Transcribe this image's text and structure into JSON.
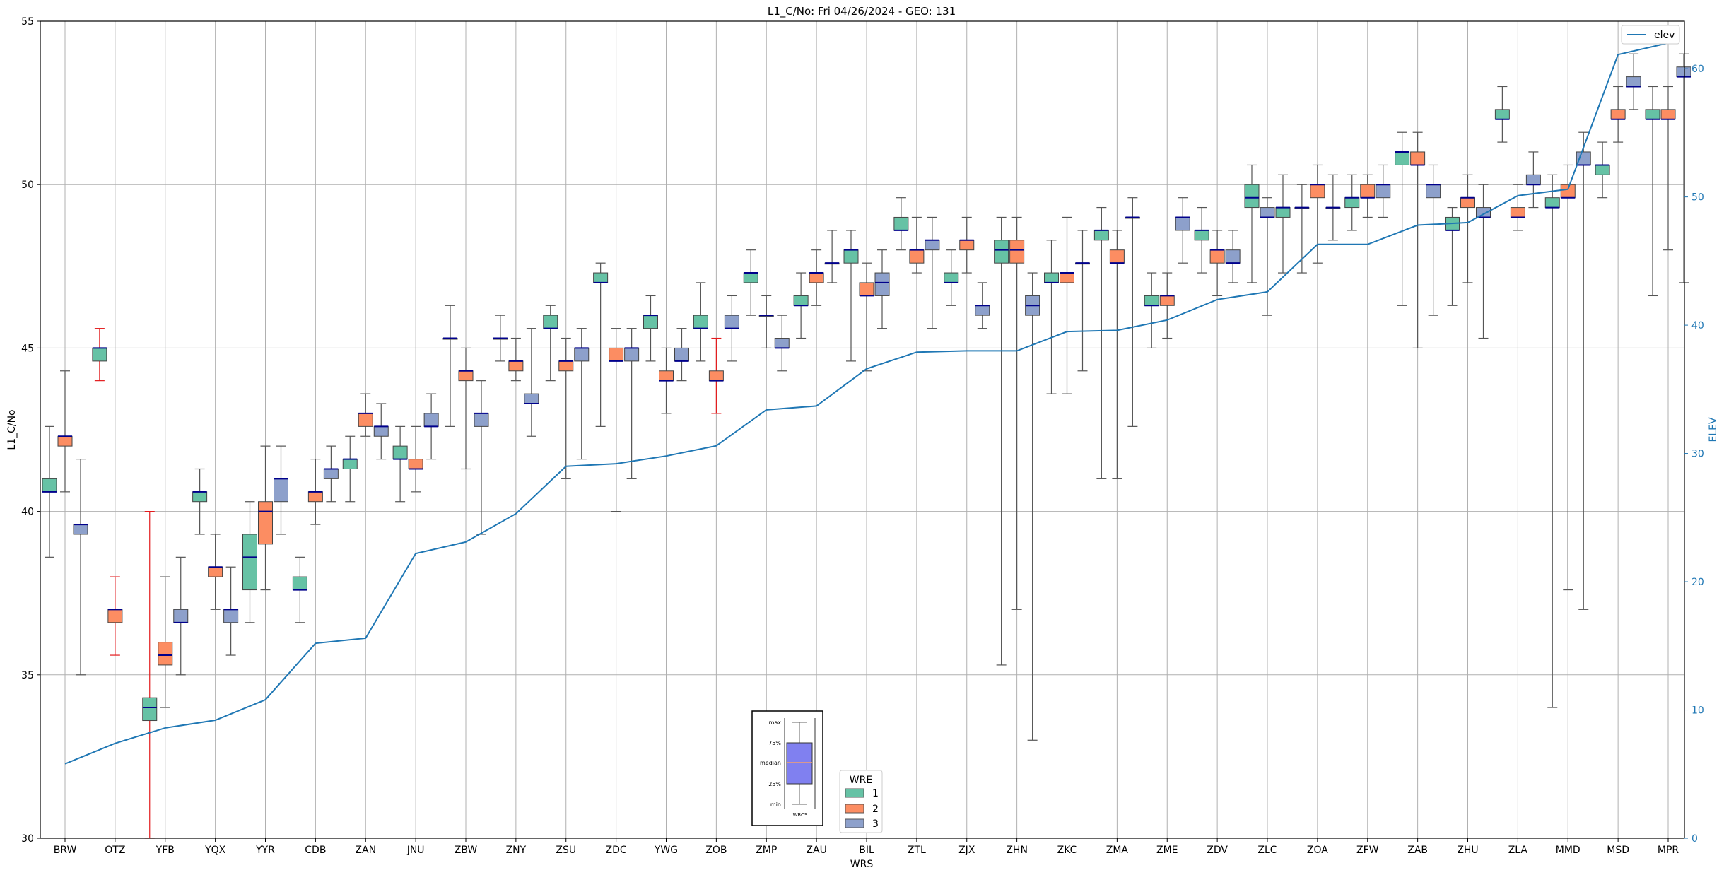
{
  "chart_data": {
    "type": "box",
    "title": "L1_C/No: Fri 04/26/2024 - GEO: 131",
    "xlabel": "WRS",
    "ylabel": "L1_C/No",
    "y2label": "ELEV",
    "ylim": [
      30,
      55
    ],
    "y2lim": [
      0,
      63.7
    ],
    "yticks": [
      30,
      35,
      40,
      45,
      50,
      55
    ],
    "y2ticks": [
      0,
      10,
      20,
      30,
      40,
      50,
      60
    ],
    "grid": true,
    "legend_position": "top-right",
    "wre_legend_position": "lower-center",
    "categories": [
      "BRW",
      "OTZ",
      "YFB",
      "YQX",
      "YYR",
      "CDB",
      "ZAN",
      "JNU",
      "ZBW",
      "ZNY",
      "ZSU",
      "ZDC",
      "YWG",
      "ZOB",
      "ZMP",
      "ZAU",
      "BIL",
      "ZTL",
      "ZJX",
      "ZHN",
      "ZKC",
      "ZMA",
      "ZME",
      "ZDV",
      "ZLC",
      "ZOA",
      "ZFW",
      "ZAB",
      "ZHU",
      "ZLA",
      "MMD",
      "MSD",
      "MPR"
    ],
    "wre_legend": {
      "title": "WRE",
      "items": [
        {
          "label": "1",
          "color": "#66c2a5"
        },
        {
          "label": "2",
          "color": "#fc8d62"
        },
        {
          "label": "3",
          "color": "#8da0cb"
        }
      ]
    },
    "key_inset": {
      "labels": [
        "max",
        "75%",
        "median",
        "25%",
        "min"
      ],
      "xlabel": "WRCS"
    },
    "elev": {
      "name": "elev",
      "color": "#1f77b4",
      "values": [
        5.8,
        7.4,
        8.6,
        9.2,
        10.8,
        15.2,
        15.6,
        22.2,
        23.1,
        25.3,
        29.0,
        29.2,
        29.8,
        30.6,
        33.4,
        33.7,
        36.6,
        37.9,
        38.0,
        38.0,
        39.5,
        39.6,
        40.4,
        42.0,
        42.6,
        46.3,
        46.3,
        47.8,
        48.0,
        50.1,
        50.6,
        61.1,
        62.0
      ]
    },
    "boxes": [
      {
        "cat": "BRW",
        "wre": 1,
        "min": 38.6,
        "q1": 40.6,
        "median": 40.6,
        "q3": 41.0,
        "max": 42.6
      },
      {
        "cat": "BRW",
        "wre": 2,
        "min": 40.6,
        "q1": 42.0,
        "median": 42.3,
        "q3": 42.3,
        "max": 44.3
      },
      {
        "cat": "BRW",
        "wre": 3,
        "min": 35.0,
        "q1": 39.3,
        "median": 39.6,
        "q3": 39.6,
        "max": 41.6
      },
      {
        "cat": "OTZ",
        "wre": 1,
        "min": 44.0,
        "q1": 44.6,
        "median": 45.0,
        "q3": 45.0,
        "max": 45.6,
        "whisker_color": "#e31a1c"
      },
      {
        "cat": "OTZ",
        "wre": 2,
        "min": 35.6,
        "q1": 36.6,
        "median": 37.0,
        "q3": 37.0,
        "max": 38.0,
        "whisker_color": "#e31a1c"
      },
      {
        "cat": "YFB",
        "wre": 1,
        "min": 30.0,
        "q1": 33.6,
        "median": 34.0,
        "q3": 34.3,
        "max": 40.0,
        "whisker_color": "#e31a1c"
      },
      {
        "cat": "YFB",
        "wre": 2,
        "min": 34.0,
        "q1": 35.3,
        "median": 35.6,
        "q3": 36.0,
        "max": 38.0
      },
      {
        "cat": "YFB",
        "wre": 3,
        "min": 35.0,
        "q1": 36.6,
        "median": 36.6,
        "q3": 37.0,
        "max": 38.6
      },
      {
        "cat": "YQX",
        "wre": 1,
        "min": 39.3,
        "q1": 40.3,
        "median": 40.6,
        "q3": 40.6,
        "max": 41.3
      },
      {
        "cat": "YQX",
        "wre": 2,
        "min": 37.0,
        "q1": 38.0,
        "median": 38.3,
        "q3": 38.3,
        "max": 39.3
      },
      {
        "cat": "YQX",
        "wre": 3,
        "min": 35.6,
        "q1": 36.6,
        "median": 37.0,
        "q3": 37.0,
        "max": 38.3
      },
      {
        "cat": "YYR",
        "wre": 1,
        "min": 36.6,
        "q1": 37.6,
        "median": 38.6,
        "q3": 39.3,
        "max": 40.3
      },
      {
        "cat": "YYR",
        "wre": 2,
        "min": 37.6,
        "q1": 39.0,
        "median": 40.0,
        "q3": 40.3,
        "max": 42.0
      },
      {
        "cat": "YYR",
        "wre": 3,
        "min": 39.3,
        "q1": 40.3,
        "median": 41.0,
        "q3": 41.0,
        "max": 42.0
      },
      {
        "cat": "CDB",
        "wre": 1,
        "min": 36.6,
        "q1": 37.6,
        "median": 37.6,
        "q3": 38.0,
        "max": 38.6
      },
      {
        "cat": "CDB",
        "wre": 2,
        "min": 39.6,
        "q1": 40.3,
        "median": 40.6,
        "q3": 40.6,
        "max": 41.6
      },
      {
        "cat": "CDB",
        "wre": 3,
        "min": 40.3,
        "q1": 41.0,
        "median": 41.3,
        "q3": 41.3,
        "max": 42.0
      },
      {
        "cat": "ZAN",
        "wre": 1,
        "min": 40.3,
        "q1": 41.3,
        "median": 41.6,
        "q3": 41.6,
        "max": 42.3
      },
      {
        "cat": "ZAN",
        "wre": 2,
        "min": 42.3,
        "q1": 42.6,
        "median": 43.0,
        "q3": 43.0,
        "max": 43.6
      },
      {
        "cat": "ZAN",
        "wre": 3,
        "min": 41.6,
        "q1": 42.3,
        "median": 42.6,
        "q3": 42.6,
        "max": 43.3
      },
      {
        "cat": "JNU",
        "wre": 1,
        "min": 40.3,
        "q1": 41.6,
        "median": 41.6,
        "q3": 42.0,
        "max": 42.6
      },
      {
        "cat": "JNU",
        "wre": 2,
        "min": 40.6,
        "q1": 41.3,
        "median": 41.3,
        "q3": 41.6,
        "max": 42.6
      },
      {
        "cat": "JNU",
        "wre": 3,
        "min": 41.6,
        "q1": 42.6,
        "median": 42.6,
        "q3": 43.0,
        "max": 43.6
      },
      {
        "cat": "ZBW",
        "wre": 3,
        "min": 42.6,
        "q1": 45.3,
        "median": 45.3,
        "q3": 45.3,
        "max": 46.3
      },
      {
        "cat": "ZBW",
        "wre": 2,
        "min": 41.3,
        "q1": 44.0,
        "median": 44.3,
        "q3": 44.3,
        "max": 45.0
      },
      {
        "cat": "ZBW",
        "wre": 3,
        "min": 39.3,
        "q1": 42.6,
        "median": 43.0,
        "q3": 43.0,
        "max": 44.0
      },
      {
        "cat": "ZNY",
        "wre": 3,
        "min": 44.6,
        "q1": 45.3,
        "median": 45.3,
        "q3": 45.3,
        "max": 46.0
      },
      {
        "cat": "ZNY",
        "wre": 2,
        "min": 44.0,
        "q1": 44.3,
        "median": 44.6,
        "q3": 44.6,
        "max": 45.3
      },
      {
        "cat": "ZNY",
        "wre": 3,
        "min": 42.3,
        "q1": 43.3,
        "median": 43.3,
        "q3": 43.6,
        "max": 45.6
      },
      {
        "cat": "ZSU",
        "wre": 1,
        "min": 44.0,
        "q1": 45.6,
        "median": 45.6,
        "q3": 46.0,
        "max": 46.3
      },
      {
        "cat": "ZSU",
        "wre": 2,
        "min": 41.0,
        "q1": 44.3,
        "median": 44.6,
        "q3": 44.6,
        "max": 45.3
      },
      {
        "cat": "ZSU",
        "wre": 3,
        "min": 41.6,
        "q1": 44.6,
        "median": 45.0,
        "q3": 45.0,
        "max": 45.6
      },
      {
        "cat": "ZDC",
        "wre": 1,
        "min": 42.6,
        "q1": 47.0,
        "median": 47.0,
        "q3": 47.3,
        "max": 47.6
      },
      {
        "cat": "ZDC",
        "wre": 2,
        "min": 40.0,
        "q1": 44.6,
        "median": 44.6,
        "q3": 45.0,
        "max": 45.6
      },
      {
        "cat": "ZDC",
        "wre": 3,
        "min": 41.0,
        "q1": 44.6,
        "median": 45.0,
        "q3": 45.0,
        "max": 45.6
      },
      {
        "cat": "YWG",
        "wre": 1,
        "min": 44.6,
        "q1": 45.6,
        "median": 46.0,
        "q3": 46.0,
        "max": 46.6
      },
      {
        "cat": "YWG",
        "wre": 2,
        "min": 43.0,
        "q1": 44.0,
        "median": 44.0,
        "q3": 44.3,
        "max": 45.0
      },
      {
        "cat": "YWG",
        "wre": 3,
        "min": 44.0,
        "q1": 44.6,
        "median": 44.6,
        "q3": 45.0,
        "max": 45.6
      },
      {
        "cat": "ZOB",
        "wre": 1,
        "min": 44.6,
        "q1": 45.6,
        "median": 45.6,
        "q3": 46.0,
        "max": 47.0
      },
      {
        "cat": "ZOB",
        "wre": 2,
        "min": 43.0,
        "q1": 44.0,
        "median": 44.0,
        "q3": 44.3,
        "max": 45.3,
        "whisker_color": "#e31a1c"
      },
      {
        "cat": "ZOB",
        "wre": 3,
        "min": 44.6,
        "q1": 45.6,
        "median": 45.6,
        "q3": 46.0,
        "max": 46.6
      },
      {
        "cat": "ZMP",
        "wre": 1,
        "min": 46.0,
        "q1": 47.0,
        "median": 47.3,
        "q3": 47.3,
        "max": 48.0
      },
      {
        "cat": "ZMP",
        "wre": 3,
        "min": 45.0,
        "q1": 46.0,
        "median": 46.0,
        "q3": 46.0,
        "max": 46.6
      },
      {
        "cat": "ZMP",
        "wre": 3,
        "min": 44.3,
        "q1": 45.0,
        "median": 45.0,
        "q3": 45.3,
        "max": 46.0
      },
      {
        "cat": "ZAU",
        "wre": 1,
        "min": 45.3,
        "q1": 46.3,
        "median": 46.3,
        "q3": 46.6,
        "max": 47.3
      },
      {
        "cat": "ZAU",
        "wre": 2,
        "min": 46.3,
        "q1": 47.0,
        "median": 47.3,
        "q3": 47.3,
        "max": 48.0
      },
      {
        "cat": "ZAU",
        "wre": 3,
        "min": 47.0,
        "q1": 47.6,
        "median": 47.6,
        "q3": 47.6,
        "max": 48.6
      },
      {
        "cat": "BIL",
        "wre": 1,
        "min": 44.6,
        "q1": 47.6,
        "median": 48.0,
        "q3": 48.0,
        "max": 48.6
      },
      {
        "cat": "BIL",
        "wre": 2,
        "min": 44.3,
        "q1": 46.6,
        "median": 46.6,
        "q3": 47.0,
        "max": 47.6
      },
      {
        "cat": "BIL",
        "wre": 3,
        "min": 45.6,
        "q1": 46.6,
        "median": 47.0,
        "q3": 47.3,
        "max": 48.0
      },
      {
        "cat": "ZTL",
        "wre": 1,
        "min": 48.0,
        "q1": 48.6,
        "median": 48.6,
        "q3": 49.0,
        "max": 49.6
      },
      {
        "cat": "ZTL",
        "wre": 2,
        "min": 47.3,
        "q1": 47.6,
        "median": 48.0,
        "q3": 48.0,
        "max": 49.0
      },
      {
        "cat": "ZTL",
        "wre": 3,
        "min": 45.6,
        "q1": 48.0,
        "median": 48.3,
        "q3": 48.3,
        "max": 49.0
      },
      {
        "cat": "ZJX",
        "wre": 1,
        "min": 46.3,
        "q1": 47.0,
        "median": 47.0,
        "q3": 47.3,
        "max": 48.0
      },
      {
        "cat": "ZJX",
        "wre": 2,
        "min": 47.3,
        "q1": 48.0,
        "median": 48.3,
        "q3": 48.3,
        "max": 49.0
      },
      {
        "cat": "ZJX",
        "wre": 3,
        "min": 45.6,
        "q1": 46.0,
        "median": 46.3,
        "q3": 46.3,
        "max": 47.0
      },
      {
        "cat": "ZHN",
        "wre": 1,
        "min": 35.3,
        "q1": 47.6,
        "median": 48.0,
        "q3": 48.3,
        "max": 49.0
      },
      {
        "cat": "ZHN",
        "wre": 2,
        "min": 37.0,
        "q1": 47.6,
        "median": 48.0,
        "q3": 48.3,
        "max": 49.0
      },
      {
        "cat": "ZHN",
        "wre": 3,
        "min": 33.0,
        "q1": 46.0,
        "median": 46.3,
        "q3": 46.6,
        "max": 47.3
      },
      {
        "cat": "ZKC",
        "wre": 1,
        "min": 43.6,
        "q1": 47.0,
        "median": 47.0,
        "q3": 47.3,
        "max": 48.3
      },
      {
        "cat": "ZKC",
        "wre": 2,
        "min": 43.6,
        "q1": 47.0,
        "median": 47.3,
        "q3": 47.3,
        "max": 49.0
      },
      {
        "cat": "ZKC",
        "wre": 3,
        "min": 44.3,
        "q1": 47.6,
        "median": 47.6,
        "q3": 47.6,
        "max": 48.6
      },
      {
        "cat": "ZMA",
        "wre": 1,
        "min": 41.0,
        "q1": 48.3,
        "median": 48.6,
        "q3": 48.6,
        "max": 49.3
      },
      {
        "cat": "ZMA",
        "wre": 2,
        "min": 41.0,
        "q1": 47.6,
        "median": 47.6,
        "q3": 48.0,
        "max": 48.6
      },
      {
        "cat": "ZMA",
        "wre": 3,
        "min": 42.6,
        "q1": 49.0,
        "median": 49.0,
        "q3": 49.0,
        "max": 49.6
      },
      {
        "cat": "ZME",
        "wre": 1,
        "min": 45.0,
        "q1": 46.3,
        "median": 46.3,
        "q3": 46.6,
        "max": 47.3
      },
      {
        "cat": "ZME",
        "wre": 2,
        "min": 45.3,
        "q1": 46.3,
        "median": 46.6,
        "q3": 46.6,
        "max": 47.3
      },
      {
        "cat": "ZME",
        "wre": 3,
        "min": 47.6,
        "q1": 48.6,
        "median": 49.0,
        "q3": 49.0,
        "max": 49.6
      },
      {
        "cat": "ZDV",
        "wre": 1,
        "min": 47.3,
        "q1": 48.3,
        "median": 48.6,
        "q3": 48.6,
        "max": 49.3
      },
      {
        "cat": "ZDV",
        "wre": 2,
        "min": 46.6,
        "q1": 47.6,
        "median": 48.0,
        "q3": 48.0,
        "max": 48.6
      },
      {
        "cat": "ZDV",
        "wre": 3,
        "min": 47.0,
        "q1": 47.6,
        "median": 47.6,
        "q3": 48.0,
        "max": 48.6
      },
      {
        "cat": "ZLC",
        "wre": 1,
        "min": 47.0,
        "q1": 49.3,
        "median": 49.6,
        "q3": 50.0,
        "max": 50.6
      },
      {
        "cat": "ZLC",
        "wre": 3,
        "min": 46.0,
        "q1": 49.0,
        "median": 49.0,
        "q3": 49.3,
        "max": 49.6
      },
      {
        "cat": "ZLC",
        "wre": 1,
        "min": 47.3,
        "q1": 49.0,
        "median": 49.3,
        "q3": 49.3,
        "max": 50.3
      },
      {
        "cat": "ZOA",
        "wre": 3,
        "min": 47.3,
        "q1": 49.3,
        "median": 49.3,
        "q3": 49.3,
        "max": 50.0
      },
      {
        "cat": "ZOA",
        "wre": 2,
        "min": 47.6,
        "q1": 49.6,
        "median": 50.0,
        "q3": 50.0,
        "max": 50.6
      },
      {
        "cat": "ZOA",
        "wre": 3,
        "min": 48.3,
        "q1": 49.3,
        "median": 49.3,
        "q3": 49.3,
        "max": 50.3
      },
      {
        "cat": "ZFW",
        "wre": 1,
        "min": 48.6,
        "q1": 49.3,
        "median": 49.6,
        "q3": 49.6,
        "max": 50.3
      },
      {
        "cat": "ZFW",
        "wre": 2,
        "min": 49.0,
        "q1": 49.6,
        "median": 49.6,
        "q3": 50.0,
        "max": 50.3
      },
      {
        "cat": "ZFW",
        "wre": 3,
        "min": 49.0,
        "q1": 49.6,
        "median": 50.0,
        "q3": 50.0,
        "max": 50.6
      },
      {
        "cat": "ZAB",
        "wre": 1,
        "min": 46.3,
        "q1": 50.6,
        "median": 51.0,
        "q3": 51.0,
        "max": 51.6
      },
      {
        "cat": "ZAB",
        "wre": 2,
        "min": 45.0,
        "q1": 50.6,
        "median": 50.6,
        "q3": 51.0,
        "max": 51.6
      },
      {
        "cat": "ZAB",
        "wre": 3,
        "min": 46.0,
        "q1": 49.6,
        "median": 50.0,
        "q3": 50.0,
        "max": 50.6
      },
      {
        "cat": "ZHU",
        "wre": 1,
        "min": 46.3,
        "q1": 48.6,
        "median": 48.6,
        "q3": 49.0,
        "max": 49.3
      },
      {
        "cat": "ZHU",
        "wre": 2,
        "min": 47.0,
        "q1": 49.3,
        "median": 49.6,
        "q3": 49.6,
        "max": 50.3
      },
      {
        "cat": "ZHU",
        "wre": 3,
        "min": 45.3,
        "q1": 49.0,
        "median": 49.0,
        "q3": 49.3,
        "max": 50.0
      },
      {
        "cat": "ZLA",
        "wre": 1,
        "min": 51.3,
        "q1": 52.0,
        "median": 52.0,
        "q3": 52.3,
        "max": 53.0
      },
      {
        "cat": "ZLA",
        "wre": 2,
        "min": 48.6,
        "q1": 49.0,
        "median": 49.0,
        "q3": 49.3,
        "max": 50.0
      },
      {
        "cat": "ZLA",
        "wre": 3,
        "min": 49.3,
        "q1": 50.0,
        "median": 50.0,
        "q3": 50.3,
        "max": 51.0
      },
      {
        "cat": "MMD",
        "wre": 1,
        "min": 34.0,
        "q1": 49.3,
        "median": 49.3,
        "q3": 49.6,
        "max": 50.3
      },
      {
        "cat": "MMD",
        "wre": 2,
        "min": 37.6,
        "q1": 49.6,
        "median": 49.6,
        "q3": 50.0,
        "max": 50.6
      },
      {
        "cat": "MMD",
        "wre": 3,
        "min": 37.0,
        "q1": 50.6,
        "median": 50.6,
        "q3": 51.0,
        "max": 51.6
      },
      {
        "cat": "MSD",
        "wre": 1,
        "min": 49.6,
        "q1": 50.3,
        "median": 50.6,
        "q3": 50.6,
        "max": 51.3
      },
      {
        "cat": "MSD",
        "wre": 2,
        "min": 51.3,
        "q1": 52.0,
        "median": 52.0,
        "q3": 52.3,
        "max": 53.0
      },
      {
        "cat": "MSD",
        "wre": 3,
        "min": 52.3,
        "q1": 53.0,
        "median": 53.0,
        "q3": 53.3,
        "max": 54.0
      },
      {
        "cat": "MPR",
        "wre": 1,
        "min": 46.6,
        "q1": 52.0,
        "median": 52.0,
        "q3": 52.3,
        "max": 53.0
      },
      {
        "cat": "MPR",
        "wre": 2,
        "min": 48.0,
        "q1": 52.0,
        "median": 52.0,
        "q3": 52.3,
        "max": 53.0
      },
      {
        "cat": "MPR",
        "wre": 3,
        "min": 47.0,
        "q1": 53.3,
        "median": 53.3,
        "q3": 53.6,
        "max": 54.0
      }
    ]
  }
}
